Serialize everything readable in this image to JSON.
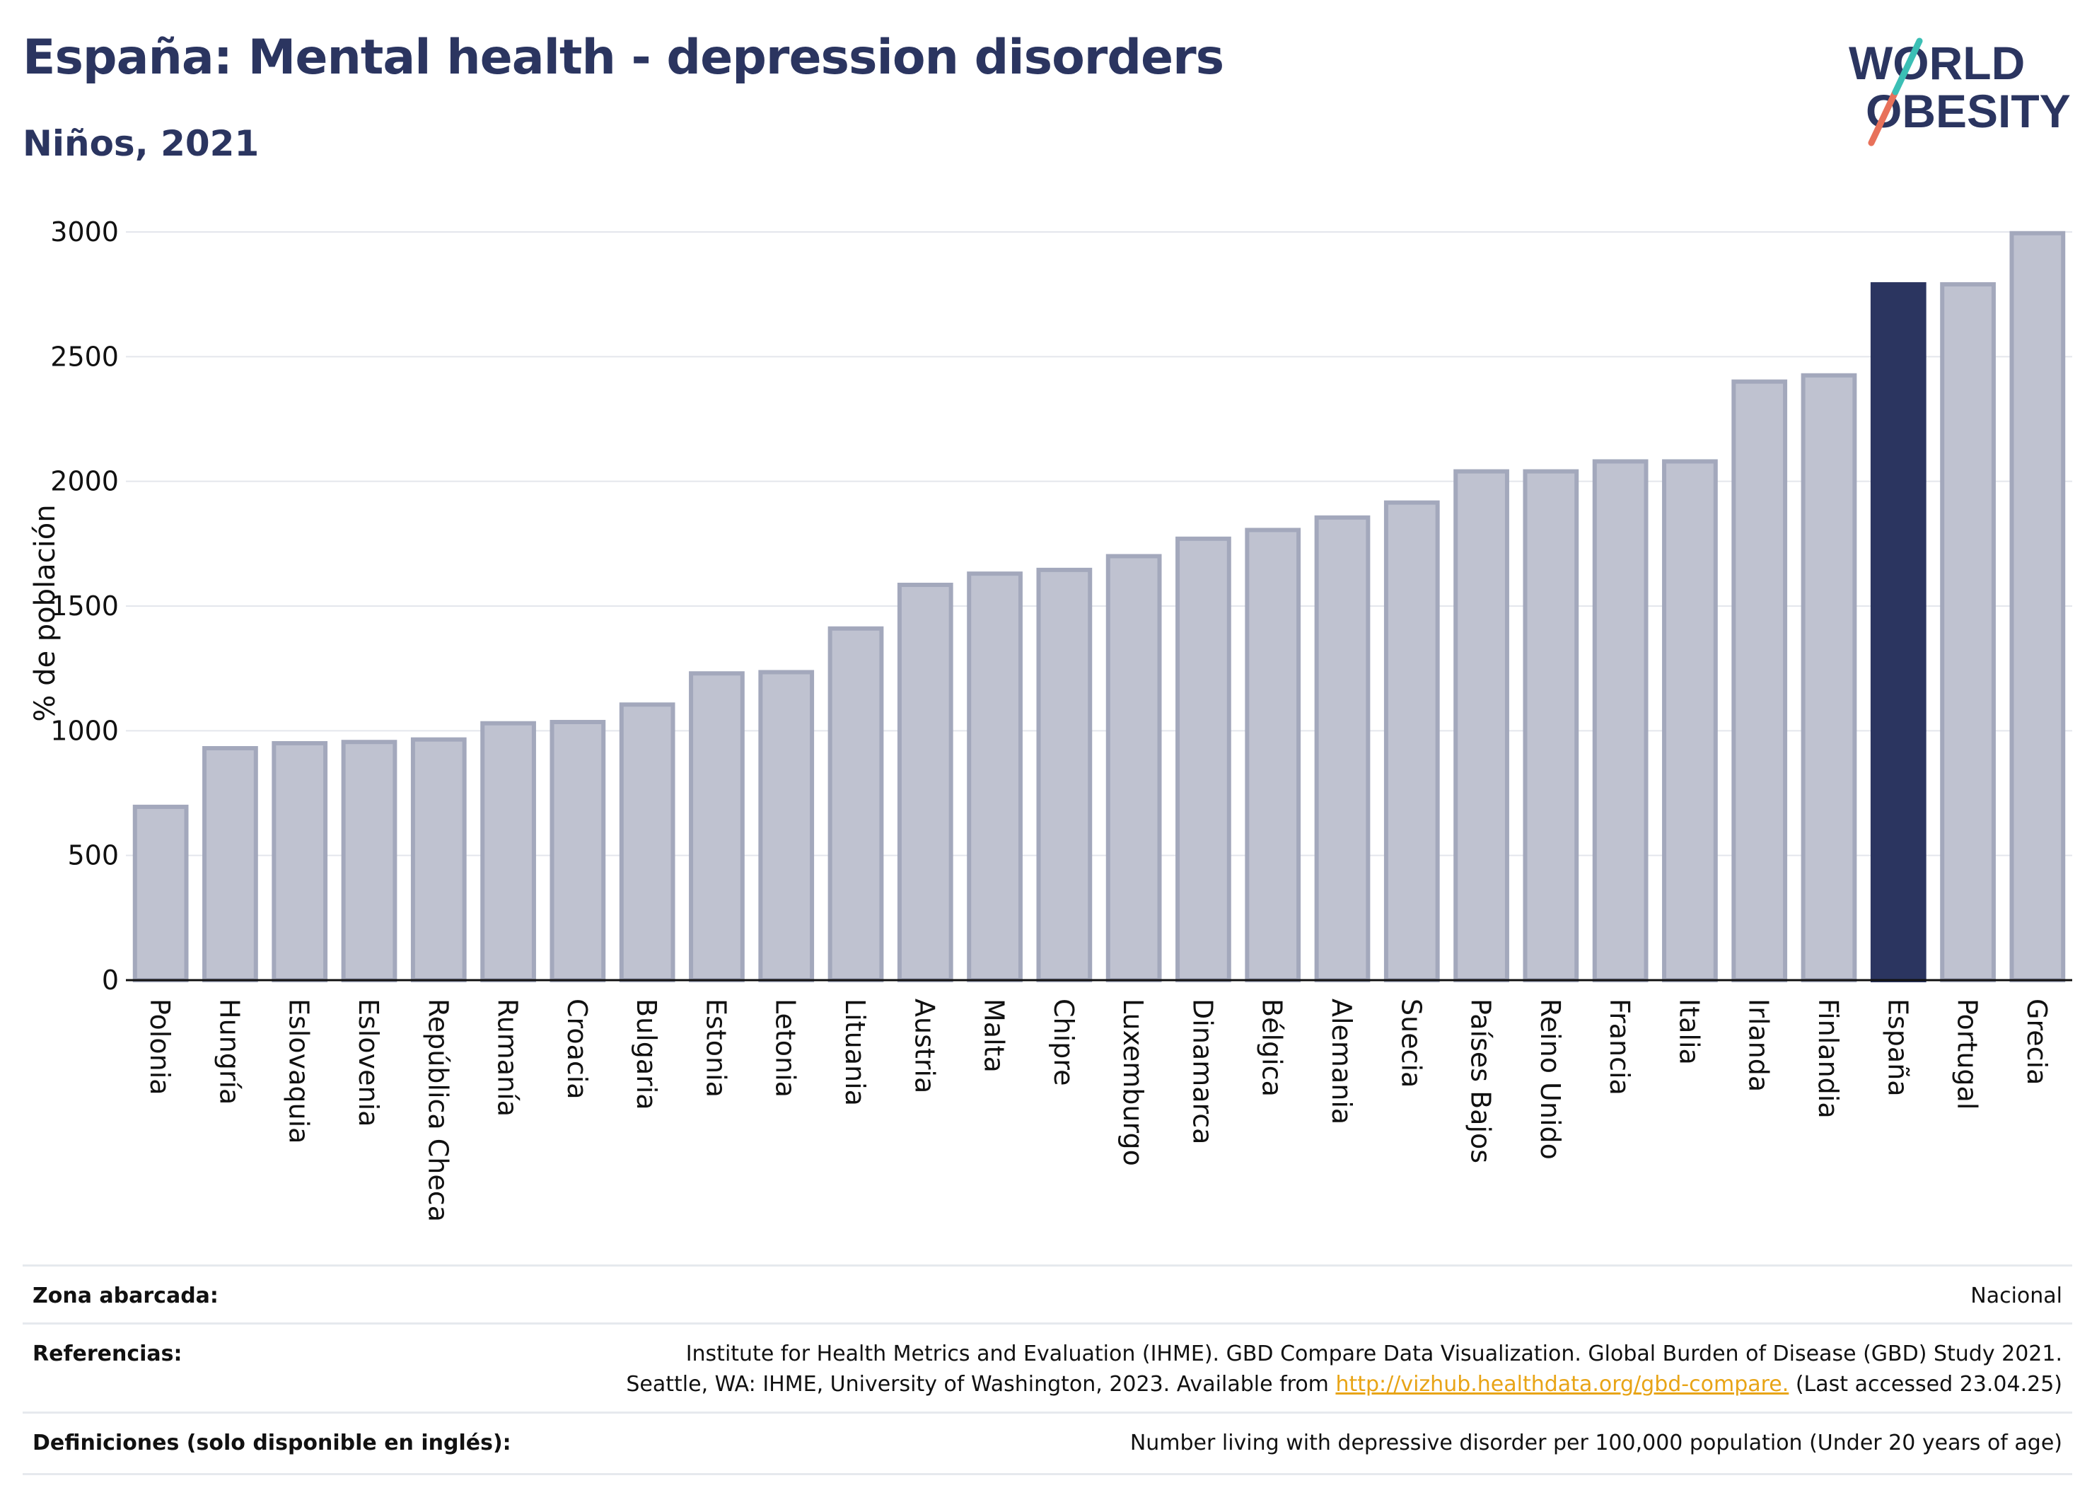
{
  "header": {
    "title": "España: Mental health - depression disorders",
    "subtitle": "Niños, 2021"
  },
  "logo": {
    "line1": "WORLD",
    "line2": "OBESITY"
  },
  "colors": {
    "highlight": "#2b3560",
    "bar": "#bfc2d0",
    "bar_edge": "#a3a8bc",
    "link": "#e8a416"
  },
  "chart_data": {
    "type": "bar",
    "ylabel": "% de población",
    "ylim": [
      0,
      3000
    ],
    "yticks": [
      0,
      500,
      1000,
      1500,
      2000,
      2500,
      3000
    ],
    "grid": true,
    "highlight": "España",
    "categories": [
      "Polonia",
      "Hungría",
      "Eslovaquia",
      "Eslovenia",
      "República Checa",
      "Rumanía",
      "Croacia",
      "Bulgaria",
      "Estonia",
      "Letonia",
      "Lituania",
      "Austria",
      "Malta",
      "Chipre",
      "Luxemburgo",
      "Dinamarca",
      "Bélgica",
      "Alemania",
      "Suecia",
      "Países Bajos",
      "Reino Unido",
      "Francia",
      "Italia",
      "Irlanda",
      "Finlandia",
      "España",
      "Portugal",
      "Grecia"
    ],
    "values": [
      695,
      930,
      950,
      955,
      965,
      1030,
      1035,
      1105,
      1230,
      1235,
      1410,
      1585,
      1630,
      1645,
      1700,
      1770,
      1805,
      1855,
      1915,
      2040,
      2040,
      2080,
      2080,
      2400,
      2425,
      2790,
      2790,
      2995
    ]
  },
  "info": {
    "zona_label": "Zona abarcada:",
    "zona_value": "Nacional",
    "ref_label": "Referencias:",
    "ref_line1": "Institute for Health Metrics and Evaluation (IHME). GBD Compare Data Visualization. Global Burden of Disease (GBD) Study 2021.",
    "ref_line2_pre": "Seattle, WA: IHME, University of Washington, 2023. Available from ",
    "ref_link": "http://vizhub.healthdata.org/gbd-compare.",
    "ref_line2_post": " (Last accessed 23.04.25)",
    "def_label": "Definiciones (solo disponible en inglés):",
    "def_value": "Number living with depressive disorder per 100,000 population (Under 20 years of age)"
  }
}
